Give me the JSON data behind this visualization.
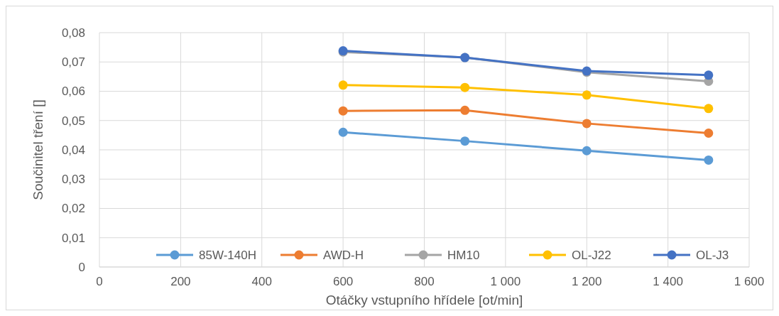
{
  "chart_data": {
    "type": "line",
    "xlabel": "Otáčky vstupního hřídele [ot/min]",
    "ylabel": "Součinitel tření []",
    "x": [
      600,
      900,
      1200,
      1500
    ],
    "series": [
      {
        "name": "85W-140H",
        "color": "#5b9bd5",
        "values": [
          0.046,
          0.043,
          0.0397,
          0.0365
        ]
      },
      {
        "name": "AWD-H",
        "color": "#ed7d31",
        "values": [
          0.0533,
          0.0535,
          0.049,
          0.0457
        ]
      },
      {
        "name": "HM10",
        "color": "#a5a5a5",
        "values": [
          0.0734,
          0.0715,
          0.0665,
          0.0634
        ]
      },
      {
        "name": "OL-J22",
        "color": "#ffc000",
        "values": [
          0.0621,
          0.0613,
          0.0587,
          0.0541
        ]
      },
      {
        "name": "OL-J3",
        "color": "#4472c4",
        "values": [
          0.0738,
          0.0715,
          0.0669,
          0.0655
        ]
      }
    ],
    "xlim": [
      0,
      1600
    ],
    "ylim": [
      0,
      0.08
    ],
    "xticks": [
      0,
      200,
      400,
      600,
      800,
      {
        "value": 1000,
        "label": "1 000"
      },
      {
        "value": 1200,
        "label": "1 200"
      },
      {
        "value": 1400,
        "label": "1 400"
      },
      {
        "value": 1600,
        "label": "1 600"
      }
    ],
    "yticks": [
      0,
      {
        "value": 0.01,
        "label": "0,01"
      },
      {
        "value": 0.02,
        "label": "0,02"
      },
      {
        "value": 0.03,
        "label": "0,03"
      },
      {
        "value": 0.04,
        "label": "0,04"
      },
      {
        "value": 0.05,
        "label": "0,05"
      },
      {
        "value": 0.06,
        "label": "0,06"
      },
      {
        "value": 0.07,
        "label": "0,07"
      },
      {
        "value": 0.08,
        "label": "0,08"
      }
    ],
    "grid": true,
    "legend": "bottom",
    "marker": "circle",
    "line_style": "solid"
  }
}
